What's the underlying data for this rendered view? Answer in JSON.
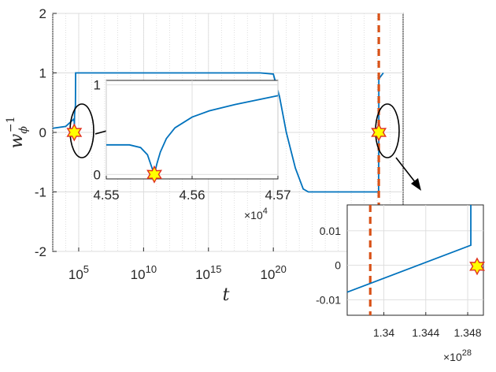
{
  "chart_data": [
    {
      "id": "main",
      "type": "line",
      "xscale": "log",
      "xlabel": "t",
      "ylabel": "w_φ^-1",
      "xlim": [
        1000.0,
        1e+30
      ],
      "ylim": [
        -2,
        2
      ],
      "xticks": [
        {
          "value": 100000.0,
          "base": "10",
          "exp": "5"
        },
        {
          "value": 10000000000.0,
          "base": "10",
          "exp": "10"
        },
        {
          "value": 1000000000000000.0,
          "base": "10",
          "exp": "15"
        },
        {
          "value": 1e+20,
          "base": "10",
          "exp": "20"
        }
      ],
      "yticks": [
        "-2",
        "-1",
        "0",
        "1",
        "2"
      ],
      "grid": true,
      "series_color": "#0072bd",
      "series": [
        {
          "x": [
            1000.0,
            10000.0,
            40000.0,
            45500.0,
            45560.0,
            48000.0,
            52000.0,
            56000.0,
            58000.0,
            60000.0,
            1000000.0,
            10000000000.0,
            1000000000000000.0,
            1e+19,
            1e+20,
            3e+20,
            1e+21,
            5e+21,
            2e+22,
            5e+22,
            1e+24,
            1e+26,
            1e+27,
            1.3e+28,
            1.3483e+28,
            1.3484e+28,
            1.35e+28,
            3e+28
          ],
          "y": [
            0.07,
            0.1,
            0.22,
            0.18,
            0.0,
            0.3,
            0.4,
            0.45,
            1.0,
            1.0,
            1.0,
            1.0,
            1.0,
            1.0,
            0.98,
            0.6,
            0.0,
            -0.6,
            -0.95,
            -1.0,
            -1.0,
            -1.0,
            -1.0,
            -1.0,
            -0.0,
            0.8,
            0.9,
            1.0
          ]
        }
      ],
      "vline": {
        "x": 1.34e+28,
        "color": "#d95319",
        "style": "dashed"
      },
      "markers": [
        {
          "x": 45560.0,
          "y": 0.0
        },
        {
          "x": 1.3484e+28,
          "y": 0.0
        }
      ]
    },
    {
      "id": "inset-1",
      "type": "line",
      "xlim": [
        45500,
        45700
      ],
      "ylim": [
        -0.05,
        1.05
      ],
      "xticks": [
        "4.55",
        "4.56",
        "4.57"
      ],
      "yticks": [
        "0",
        "1"
      ],
      "x_multiplier": {
        "base": "×10",
        "exp": "4"
      },
      "grid": true,
      "series": [
        {
          "x": [
            45500,
            45527,
            45540,
            45548,
            45553,
            45556,
            45559,
            45563,
            45570,
            45580,
            45600,
            45620,
            45650,
            45680,
            45700
          ],
          "y": [
            0.33,
            0.33,
            0.3,
            0.22,
            0.08,
            0.0,
            0.12,
            0.25,
            0.4,
            0.52,
            0.64,
            0.71,
            0.78,
            0.84,
            0.88
          ]
        }
      ],
      "markers": [
        {
          "x": 45556,
          "y": 0.0
        }
      ]
    },
    {
      "id": "inset-2",
      "type": "line",
      "xlim": [
        1.3365e+28,
        1.3495e+28
      ],
      "ylim": [
        -0.0145,
        0.0175
      ],
      "xticks": [
        "1.34",
        "1.344",
        "1.348"
      ],
      "yticks": [
        "0.01",
        "0",
        "-0.01"
      ],
      "x_multiplier": {
        "base": "×10",
        "exp": "28"
      },
      "grid": true,
      "series": [
        {
          "x": [
            1.3365e+28,
            1.3483e+28,
            1.3483e+28
          ],
          "y": [
            -0.0078,
            0.0058,
            0.0175
          ]
        }
      ],
      "vline": {
        "x": 1.3387e+28
      },
      "markers": [
        {
          "x": 1.3489e+28,
          "y": -0.0003
        }
      ]
    }
  ]
}
